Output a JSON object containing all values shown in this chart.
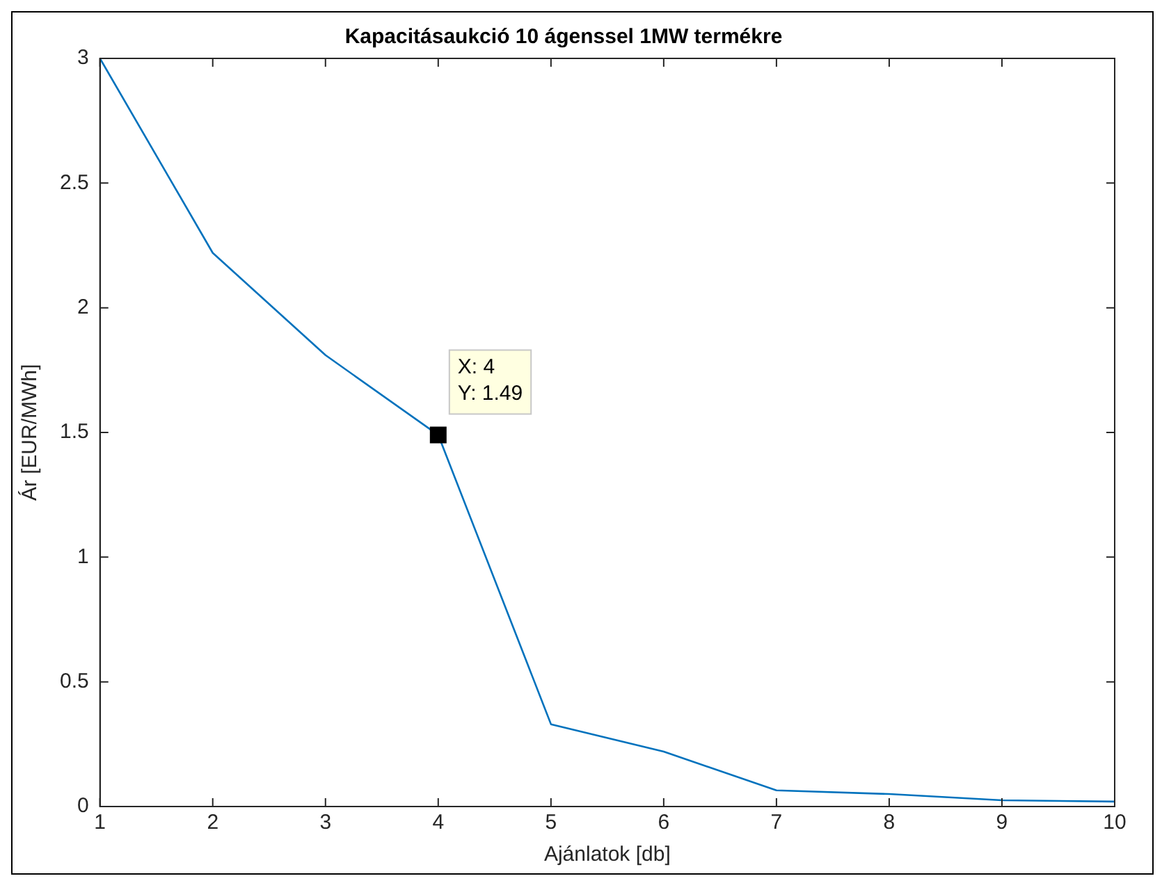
{
  "chart_data": {
    "type": "line",
    "title": "Kapacitásaukció 10 ágenssel 1MW termékre",
    "xlabel": "Ajánlatok [db]",
    "ylabel": "Ár [EUR/MWh]",
    "x": [
      1,
      2,
      3,
      4,
      5,
      6,
      7,
      8,
      9,
      10
    ],
    "series": [
      {
        "color": "#0072bd",
        "values": [
          3,
          2.22,
          1.81,
          1.49,
          0.33,
          0.22,
          0.065,
          0.05,
          0.025,
          0.02
        ]
      }
    ],
    "xlim": [
      1,
      10
    ],
    "xticks": [
      1,
      2,
      3,
      4,
      5,
      6,
      7,
      8,
      9,
      10
    ],
    "ylim": [
      0,
      3
    ],
    "yticks": [
      0,
      0.5,
      1,
      1.5,
      2,
      2.5,
      3
    ],
    "grid": false,
    "legend": false,
    "marker": "none",
    "line_style": "solid",
    "annotations": [
      {
        "text": "X: 4\nY: 1.49",
        "x": 4,
        "y": 1.49
      }
    ]
  }
}
